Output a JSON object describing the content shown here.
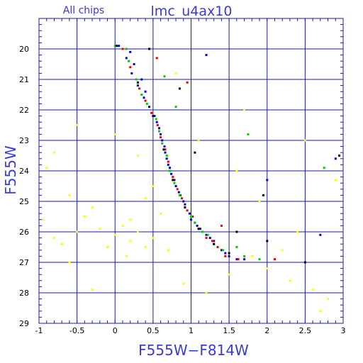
{
  "chart_data": {
    "type": "scatter",
    "subtitle": "All chips",
    "title": "lmc_u4ax10",
    "xlabel": "F555W−F814W",
    "ylabel": "F555W",
    "xlim": [
      -1,
      3
    ],
    "ylim": [
      29,
      19
    ],
    "y_inverted": true,
    "grid": true,
    "x_ticks": [
      -1,
      -0.5,
      0,
      0.5,
      1,
      1.5,
      2,
      2.5,
      3
    ],
    "x_tick_labels": [
      "-1",
      "-0.5",
      "0",
      "0.5",
      "1",
      "1.5",
      "2",
      "2.5",
      "3"
    ],
    "y_ticks": [
      20,
      21,
      22,
      23,
      24,
      25,
      26,
      27,
      28,
      29
    ],
    "y_tick_labels": [
      "20",
      "21",
      "22",
      "23",
      "24",
      "25",
      "26",
      "27",
      "28",
      "29"
    ],
    "colors": {
      "axis": "#1a1aa8",
      "grid": "#1a1aa8",
      "text": "#3a3ad6"
    },
    "series": [
      {
        "color": "#0000cc",
        "points": [
          [
            0.05,
            19.9
          ],
          [
            0.15,
            20.3
          ],
          [
            0.22,
            20.8
          ],
          [
            0.3,
            21.2
          ],
          [
            0.38,
            21.6
          ],
          [
            0.45,
            21.9
          ],
          [
            0.52,
            22.2
          ],
          [
            0.58,
            22.6
          ],
          [
            0.62,
            23.0
          ],
          [
            0.66,
            23.4
          ],
          [
            0.7,
            23.8
          ],
          [
            0.74,
            24.1
          ],
          [
            0.8,
            24.5
          ],
          [
            0.86,
            24.8
          ],
          [
            0.92,
            25.1
          ],
          [
            0.98,
            25.4
          ],
          [
            1.05,
            25.7
          ],
          [
            1.12,
            25.9
          ],
          [
            1.2,
            26.1
          ],
          [
            1.3,
            26.3
          ],
          [
            1.4,
            26.6
          ],
          [
            1.5,
            26.8
          ],
          [
            1.6,
            26.9
          ],
          [
            0.2,
            20.1
          ],
          [
            0.35,
            21.0
          ],
          [
            0.55,
            22.4
          ],
          [
            0.65,
            23.2
          ],
          [
            0.78,
            24.3
          ],
          [
            1.0,
            25.6
          ],
          [
            1.25,
            26.2
          ],
          [
            1.45,
            26.7
          ],
          [
            1.7,
            26.9
          ],
          [
            0.25,
            20.5
          ],
          [
            0.4,
            21.4
          ],
          [
            0.6,
            22.8
          ],
          [
            0.72,
            23.9
          ],
          [
            0.9,
            25.0
          ],
          [
            1.15,
            26.0
          ],
          [
            1.35,
            26.5
          ],
          [
            0.68,
            23.6
          ],
          [
            0.84,
            24.7
          ],
          [
            1.08,
            25.8
          ],
          [
            2.7,
            26.1
          ],
          [
            2.9,
            23.6
          ],
          [
            1.2,
            20.2
          ],
          [
            2.0,
            24.3
          ]
        ]
      },
      {
        "color": "#ee0000",
        "points": [
          [
            0.1,
            20.0
          ],
          [
            0.2,
            20.6
          ],
          [
            0.32,
            21.3
          ],
          [
            0.48,
            22.1
          ],
          [
            0.6,
            22.9
          ],
          [
            0.7,
            23.7
          ],
          [
            0.82,
            24.6
          ],
          [
            0.95,
            25.3
          ],
          [
            1.1,
            25.9
          ],
          [
            1.28,
            26.3
          ],
          [
            1.45,
            26.8
          ],
          [
            1.62,
            26.9
          ],
          [
            0.4,
            21.7
          ],
          [
            0.56,
            22.5
          ],
          [
            0.76,
            24.2
          ],
          [
            1.02,
            25.5
          ],
          [
            1.35,
            26.5
          ],
          [
            0.66,
            23.3
          ],
          [
            0.88,
            24.9
          ],
          [
            1.2,
            26.2
          ],
          [
            0.95,
            21.1
          ],
          [
            0.55,
            20.3
          ],
          [
            1.4,
            25.8
          ],
          [
            2.1,
            26.9
          ]
        ]
      },
      {
        "color": "#00cc00",
        "points": [
          [
            0.0,
            19.9
          ],
          [
            0.18,
            20.4
          ],
          [
            0.28,
            21.0
          ],
          [
            0.42,
            21.8
          ],
          [
            0.54,
            22.3
          ],
          [
            0.62,
            23.1
          ],
          [
            0.72,
            24.0
          ],
          [
            0.85,
            24.8
          ],
          [
            1.0,
            25.5
          ],
          [
            1.15,
            26.0
          ],
          [
            1.3,
            26.4
          ],
          [
            1.5,
            26.7
          ],
          [
            1.7,
            26.8
          ],
          [
            1.9,
            26.9
          ],
          [
            0.35,
            21.5
          ],
          [
            0.58,
            22.7
          ],
          [
            0.78,
            24.4
          ],
          [
            0.92,
            25.2
          ],
          [
            1.22,
            26.1
          ],
          [
            1.42,
            26.6
          ],
          [
            0.68,
            23.5
          ],
          [
            1.05,
            25.7
          ],
          [
            1.6,
            26.5
          ],
          [
            0.8,
            21.9
          ],
          [
            0.65,
            20.9
          ],
          [
            1.75,
            22.8
          ],
          [
            2.75,
            23.9
          ],
          [
            0.15,
            20.0
          ]
        ]
      },
      {
        "color": "#ffff00",
        "points": [
          [
            -0.9,
            23.9
          ],
          [
            -0.6,
            24.8
          ],
          [
            -0.4,
            25.5
          ],
          [
            -0.2,
            25.9
          ],
          [
            0.0,
            26.1
          ],
          [
            0.2,
            26.3
          ],
          [
            0.4,
            26.5
          ],
          [
            -0.8,
            26.2
          ],
          [
            -0.5,
            26.0
          ],
          [
            0.1,
            25.8
          ],
          [
            0.3,
            26.0
          ],
          [
            0.5,
            26.2
          ],
          [
            0.6,
            25.4
          ],
          [
            -0.3,
            25.2
          ],
          [
            -0.7,
            26.4
          ],
          [
            0.2,
            25.6
          ],
          [
            0.4,
            24.9
          ],
          [
            -0.1,
            26.5
          ],
          [
            0.7,
            26.6
          ],
          [
            1.8,
            26.8
          ],
          [
            2.0,
            27.2
          ],
          [
            2.3,
            27.6
          ],
          [
            2.6,
            27.9
          ],
          [
            2.8,
            28.2
          ],
          [
            2.4,
            26.0
          ],
          [
            2.2,
            26.6
          ],
          [
            1.9,
            25.0
          ],
          [
            1.6,
            24.0
          ],
          [
            1.7,
            22.0
          ],
          [
            0.8,
            20.8
          ],
          [
            1.1,
            23.0
          ],
          [
            -0.5,
            22.5
          ],
          [
            -0.8,
            23.4
          ],
          [
            0.0,
            22.8
          ],
          [
            0.3,
            23.5
          ],
          [
            0.5,
            24.5
          ],
          [
            2.9,
            24.3
          ],
          [
            2.5,
            23.0
          ],
          [
            1.5,
            27.4
          ],
          [
            1.2,
            28.0
          ],
          [
            0.9,
            27.7
          ],
          [
            -0.3,
            27.9
          ],
          [
            2.7,
            28.6
          ],
          [
            -0.95,
            25.6
          ],
          [
            0.15,
            26.8
          ],
          [
            -0.6,
            27.0
          ]
        ]
      },
      {
        "color": "#000000",
        "points": [
          [
            0.02,
            19.9
          ],
          [
            0.3,
            21.1
          ],
          [
            0.5,
            22.2
          ],
          [
            0.64,
            23.3
          ],
          [
            0.76,
            24.3
          ],
          [
            0.92,
            25.2
          ],
          [
            1.1,
            25.9
          ],
          [
            1.3,
            26.4
          ],
          [
            1.5,
            26.7
          ],
          [
            0.45,
            20.0
          ],
          [
            0.85,
            21.3
          ],
          [
            1.05,
            23.4
          ],
          [
            1.6,
            26.0
          ],
          [
            2.0,
            26.3
          ],
          [
            2.5,
            27.0
          ],
          [
            2.95,
            23.5
          ],
          [
            1.95,
            24.8
          ]
        ]
      }
    ]
  }
}
